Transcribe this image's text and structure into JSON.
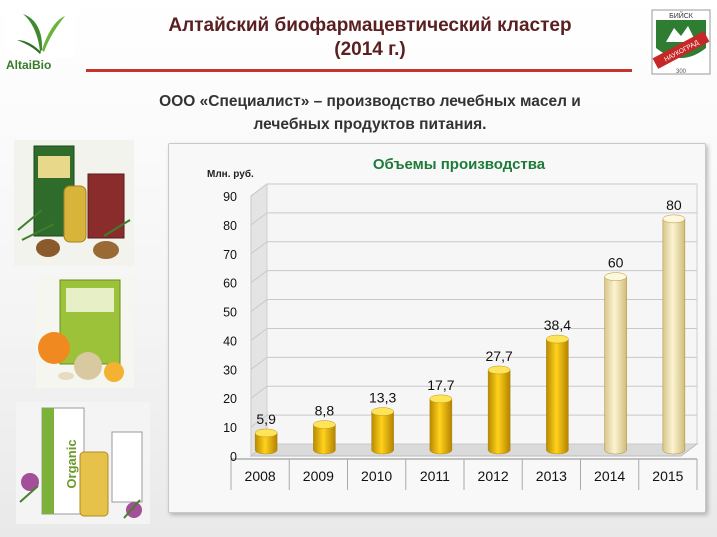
{
  "header": {
    "title_line1": "Алтайский биофармацевтический кластер",
    "title_line2": "(2014 г.)",
    "subtitle_line1": "ООО «Специалист» – производство лечебных масел и",
    "subtitle_line2": "лечебных продуктов питания."
  },
  "logos": {
    "left_text": "AltaiBio",
    "right_text": "БИЙСК",
    "right_ribbon": "НАУКОГРАД",
    "right_small": "300"
  },
  "products": {
    "bottom_brand": "Organic"
  },
  "colors": {
    "title": "#5a1f20",
    "accent_line": "#c8322c",
    "chart_title": "#1e7a3a",
    "bar_gold": "#e5b400",
    "bar_cream": "#f3e7b4"
  },
  "chart_data": {
    "type": "bar",
    "title": "Объемы производства",
    "ylabel": "Млн. руб.",
    "categories": [
      "2008",
      "2009",
      "2010",
      "2011",
      "2012",
      "2013",
      "2014",
      "2015"
    ],
    "values": [
      5.9,
      8.8,
      13.3,
      17.7,
      27.7,
      38.4,
      60,
      80
    ],
    "labels": [
      "5,9",
      "8,8",
      "13,3",
      "17,7",
      "27,7",
      "38,4",
      "60",
      "80"
    ],
    "highlight": [
      "gold",
      "gold",
      "gold",
      "gold",
      "gold",
      "gold",
      "cream",
      "cream"
    ],
    "yticks": [
      0,
      10,
      20,
      30,
      40,
      50,
      60,
      70,
      80,
      90
    ],
    "ylim": [
      0,
      90
    ],
    "grid": true,
    "style": "3d-cylinder"
  }
}
